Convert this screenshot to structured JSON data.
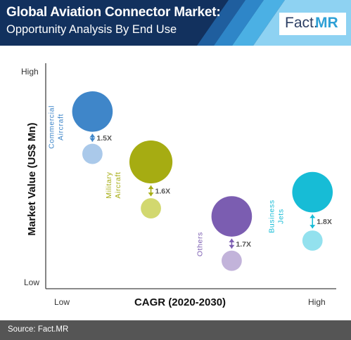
{
  "header": {
    "title": "Global Aviation Connector Market:",
    "subtitle": "Opportunity Analysis By End Use"
  },
  "logo": {
    "part1": "Fact.",
    "part2": "MR"
  },
  "footer": {
    "source": "Source: Fact.MR"
  },
  "colors": {
    "header_bg": "#12315e",
    "accent": "#2ea0d6",
    "footer_bg": "#555555",
    "axis": "#444444"
  },
  "chart_data": {
    "type": "scatter",
    "xlabel": "CAGR (2020-2030)",
    "ylabel": "Market Value (US$ Mn)",
    "x_tick_labels": [
      "Low",
      "High"
    ],
    "y_tick_labels": [
      "Low",
      "High"
    ],
    "xlim": [
      0,
      100
    ],
    "ylim": [
      0,
      100
    ],
    "grid": false,
    "legend": "none",
    "series": [
      {
        "name": "Commercial Aircraft",
        "label_lines": [
          "Commercial",
          "Aircraft"
        ],
        "color": "#3f86c9",
        "light_color": "#aac9ea",
        "x": 15,
        "y_current": 83,
        "y_future": 62,
        "size_current": 16,
        "size_future": 8,
        "multiplier": "1.5X"
      },
      {
        "name": "Military Aircraft",
        "label_lines": [
          "Military",
          "Aircraft"
        ],
        "color": "#a6ac12",
        "light_color": "#d2d86f",
        "x": 36,
        "y_current": 58,
        "y_future": 35,
        "size_current": 17,
        "size_future": 8,
        "multiplier": "1.6X"
      },
      {
        "name": "Others",
        "label_lines": [
          "Others"
        ],
        "color": "#7b5db1",
        "light_color": "#c2b3da",
        "x": 65,
        "y_current": 31,
        "y_future": 9,
        "size_current": 16,
        "size_future": 8,
        "multiplier": "1.7X"
      },
      {
        "name": "Business Jets",
        "label_lines": [
          "Business",
          "Jets"
        ],
        "color": "#17bcd6",
        "light_color": "#93e1ee",
        "x": 94,
        "y_current": 43,
        "y_future": 19,
        "size_current": 16,
        "size_future": 8,
        "multiplier": "1.8X"
      }
    ]
  }
}
